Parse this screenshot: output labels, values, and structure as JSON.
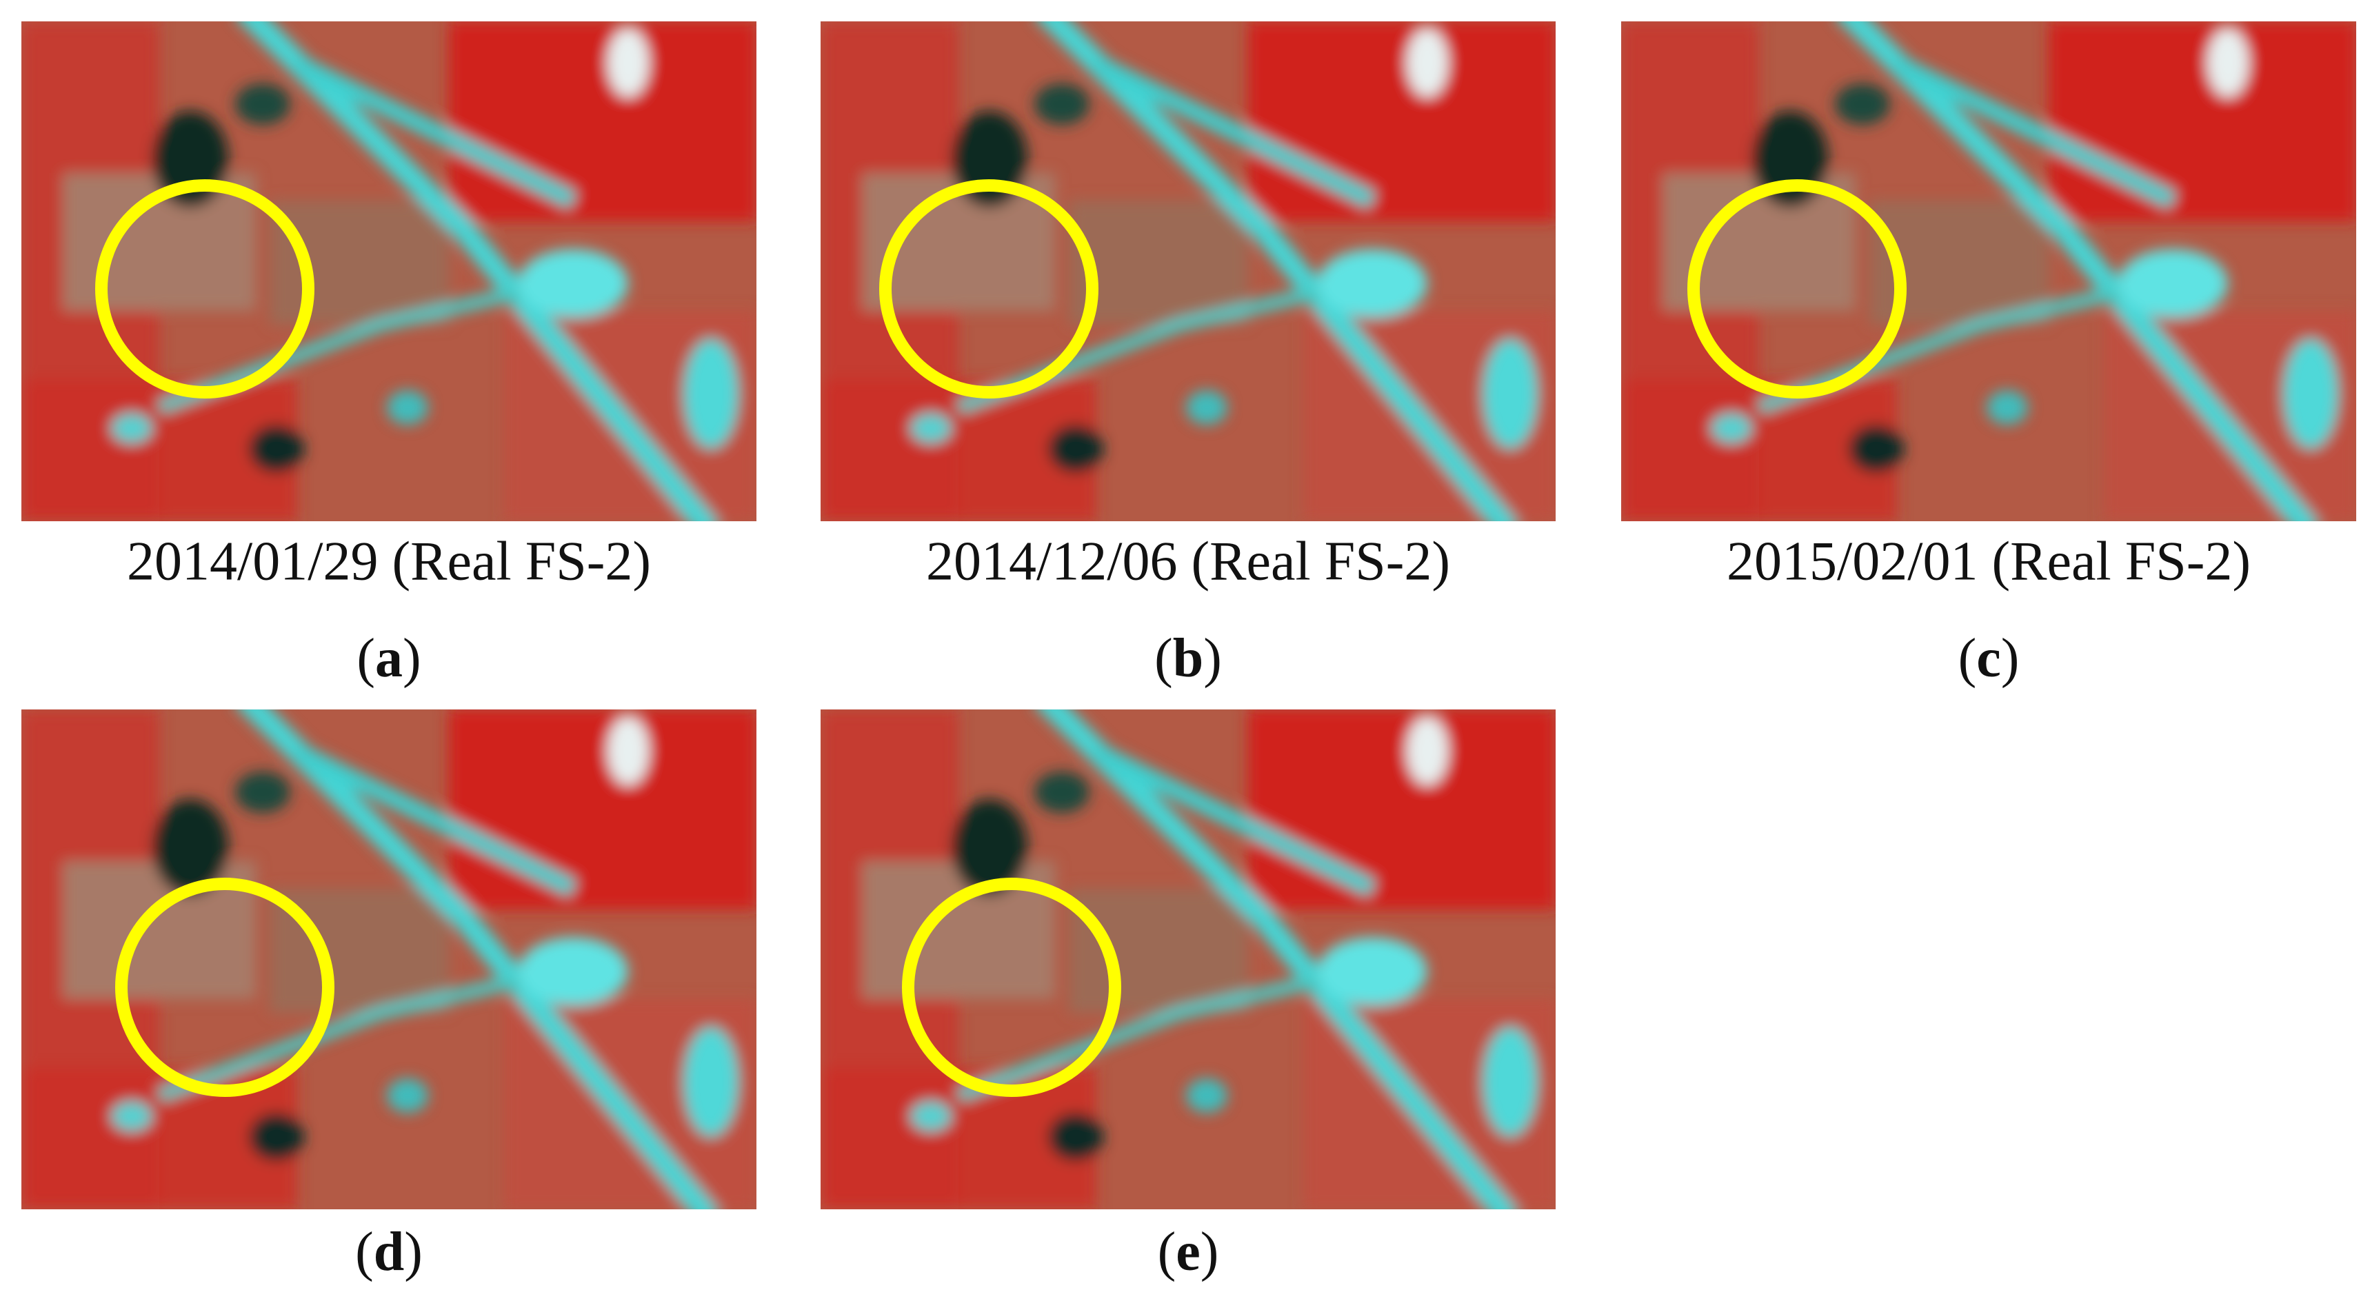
{
  "panels": [
    {
      "caption": "2014/01/29 (Real FS-2)",
      "label": [
        "(",
        "a",
        ")"
      ]
    },
    {
      "caption": "2014/12/06 (Real FS-2)",
      "label": [
        "(",
        "b",
        ")"
      ]
    },
    {
      "caption": "2015/02/01 (Real FS-2)",
      "label": [
        "(",
        "c",
        ")"
      ]
    },
    {
      "label": [
        "(",
        "d",
        ")"
      ]
    },
    {
      "label": [
        "(",
        "e",
        ")"
      ]
    }
  ]
}
